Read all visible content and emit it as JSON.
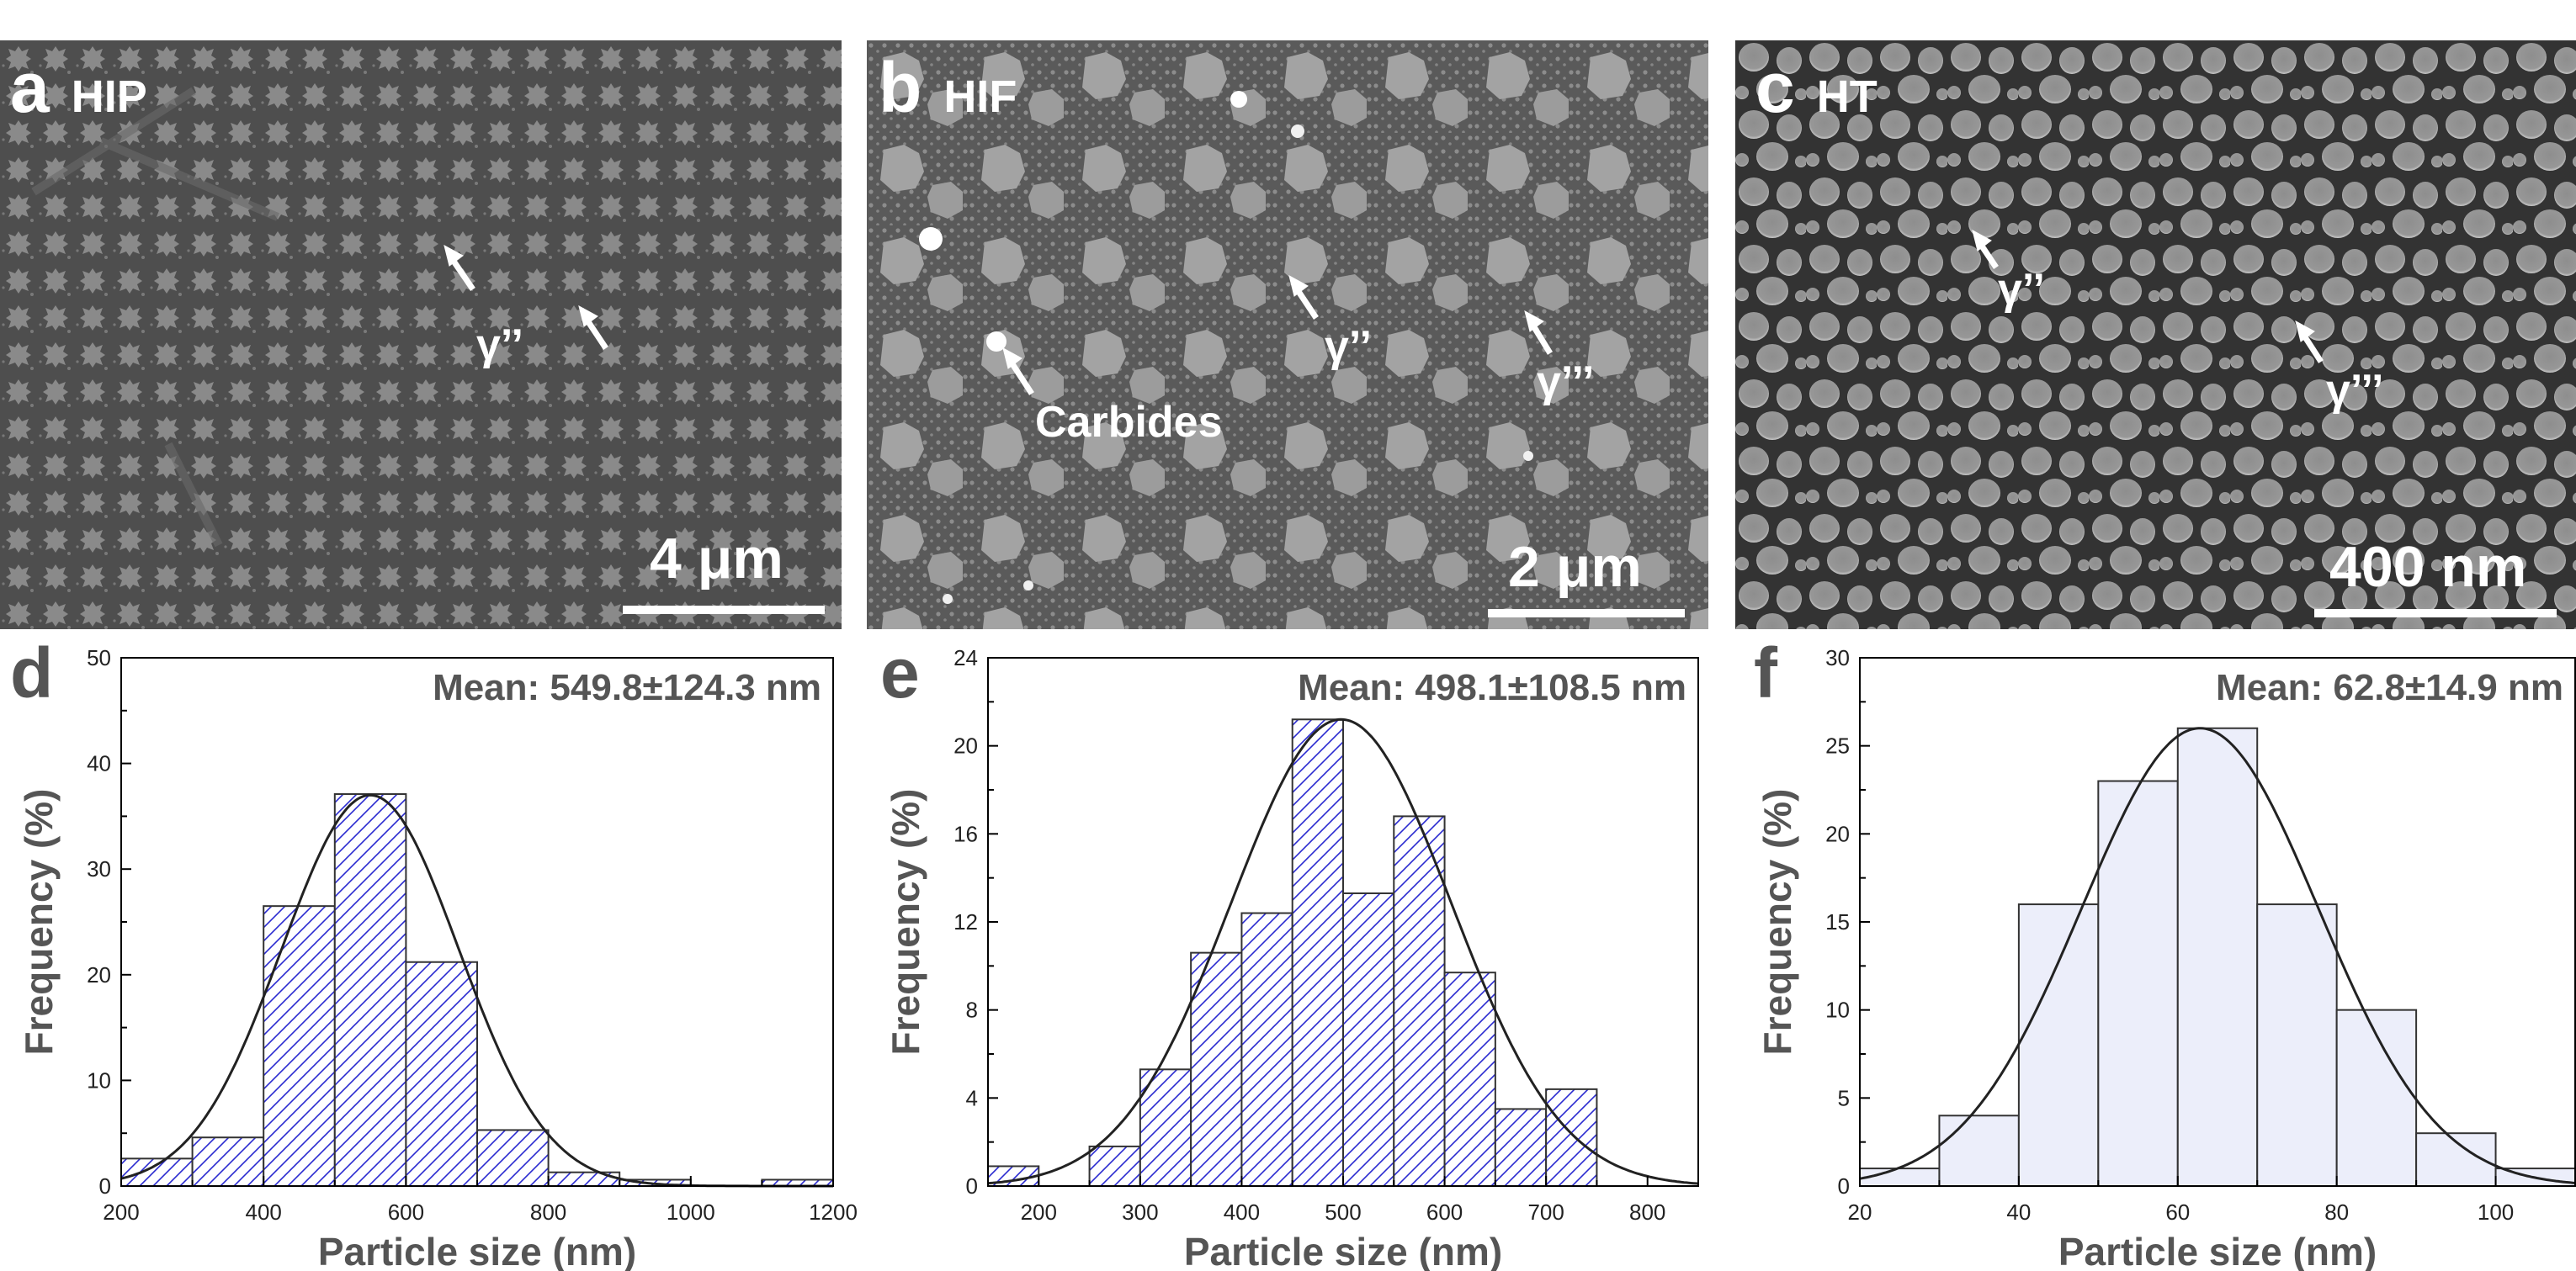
{
  "panels": {
    "a": {
      "letter": "a",
      "label": "HIP",
      "scale": "4 μm",
      "annotations": [
        "γ’’"
      ]
    },
    "b": {
      "letter": "b",
      "label": "HIF",
      "scale": "2 μm",
      "annotations": [
        "γ’’",
        "γ’’’",
        "Carbides"
      ]
    },
    "c": {
      "letter": "c",
      "label": "HT",
      "scale": "400 nm",
      "annotations": [
        "γ’’",
        "γ’’’"
      ]
    }
  },
  "hist_letters": {
    "d": "d",
    "e": "e",
    "f": "f"
  },
  "colors": {
    "hatch": "#2a2ad0",
    "hatch_bg": "#ffffff",
    "fill_f": "#eceefa",
    "bar_edge": "#333333",
    "curve": "#222222",
    "axis_text": "#555555"
  },
  "chart_data": [
    {
      "type": "bar",
      "panel": "d",
      "style": "hatched",
      "annotation": "Mean: 549.8±124.3 nm",
      "xlabel": "Particle size (nm)",
      "ylabel": "Frequency (%)",
      "xlim": [
        200,
        1200
      ],
      "ylim": [
        0,
        50
      ],
      "xticks": [
        200,
        400,
        600,
        800,
        1000,
        1200
      ],
      "yticks": [
        0,
        10,
        20,
        30,
        40,
        50
      ],
      "bin_edges": [
        200,
        300,
        400,
        500,
        600,
        700,
        800,
        900,
        1000,
        1100,
        1200
      ],
      "values": [
        2.6,
        4.6,
        26.5,
        37.1,
        21.2,
        5.3,
        1.3,
        0.6,
        0,
        0.6
      ],
      "fit": {
        "type": "gaussian",
        "mean": 549.8,
        "sigma": 124.3,
        "peak": 37.0
      }
    },
    {
      "type": "bar",
      "panel": "e",
      "style": "hatched",
      "annotation": "Mean: 498.1±108.5 nm",
      "xlabel": "Particle size (nm)",
      "ylabel": "Frequency (%)",
      "xlim": [
        150,
        850
      ],
      "ylim": [
        0,
        24
      ],
      "xticks": [
        200,
        300,
        400,
        500,
        600,
        700,
        800
      ],
      "yticks": [
        0,
        4,
        8,
        12,
        16,
        20,
        24
      ],
      "bin_edges": [
        150,
        200,
        250,
        300,
        350,
        400,
        450,
        500,
        550,
        600,
        650,
        700,
        750
      ],
      "values": [
        0.9,
        0,
        1.8,
        5.3,
        10.6,
        12.4,
        21.2,
        13.3,
        16.8,
        9.7,
        3.5,
        4.4
      ],
      "fit": {
        "type": "gaussian",
        "mean": 498.1,
        "sigma": 108.5,
        "peak": 21.2
      }
    },
    {
      "type": "bar",
      "panel": "f",
      "style": "filled",
      "annotation": "Mean: 62.8±14.9 nm",
      "xlabel": "Particle size (nm)",
      "ylabel": "Frequency (%)",
      "xlim": [
        20,
        110
      ],
      "ylim": [
        0,
        30
      ],
      "xticks": [
        20,
        40,
        60,
        80,
        100
      ],
      "yticks": [
        0,
        5,
        10,
        15,
        20,
        25,
        30
      ],
      "bin_edges": [
        20,
        30,
        40,
        50,
        60,
        70,
        80,
        90,
        100,
        110
      ],
      "values": [
        1,
        4,
        16,
        23,
        26,
        16,
        10,
        3,
        1
      ],
      "fit": {
        "type": "gaussian",
        "mean": 62.8,
        "sigma": 14.9,
        "peak": 26.0
      }
    }
  ]
}
